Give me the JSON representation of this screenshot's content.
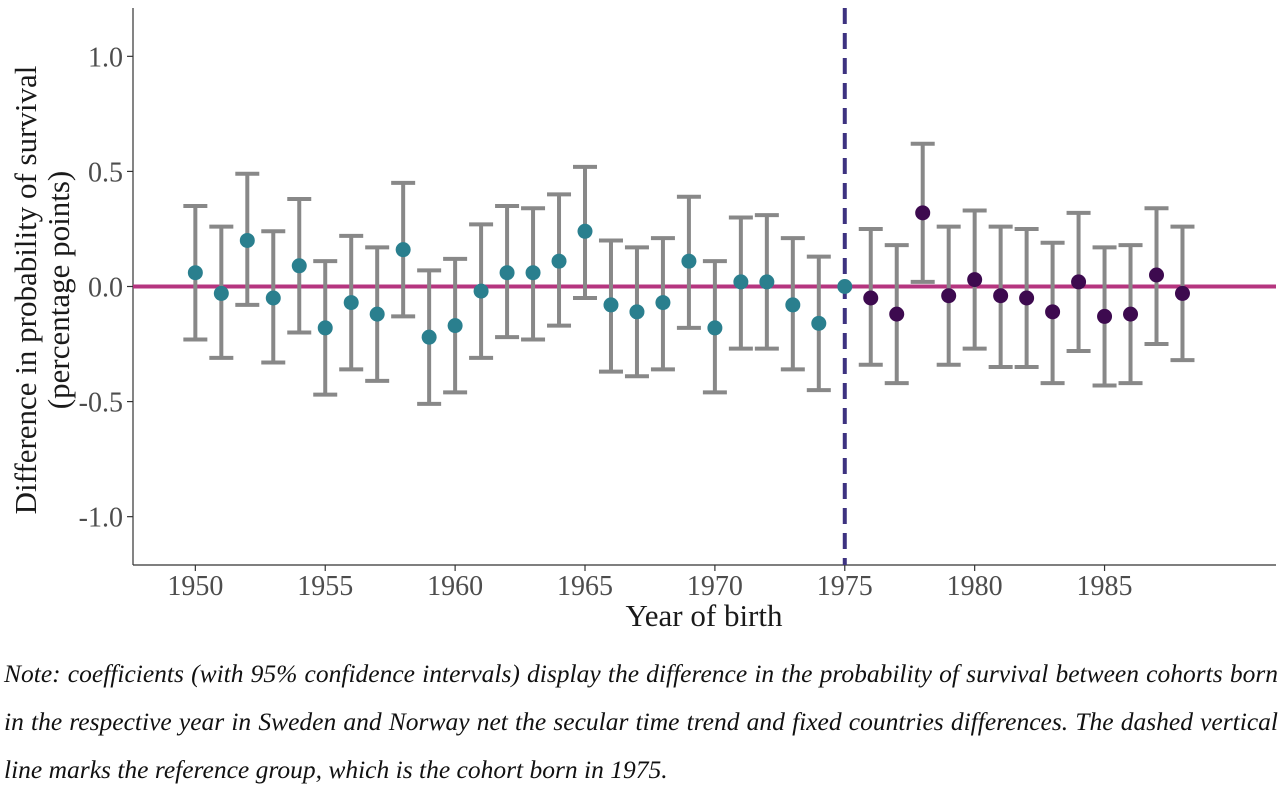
{
  "chart_data": {
    "type": "scatter",
    "title": "",
    "xlabel": "Year of birth",
    "ylabel": [
      "Difference in probability of survival",
      "(percentage points)"
    ],
    "xlim": [
      1947.6,
      1991.6
    ],
    "ylim": [
      -1.21,
      1.21
    ],
    "xticks": [
      1950,
      1955,
      1960,
      1965,
      1970,
      1975,
      1980,
      1985
    ],
    "xtick_labels": [
      "1950",
      "1955",
      "1960",
      "1965",
      "1970",
      "1975",
      "1980",
      "1985"
    ],
    "yticks": [
      1.0,
      0.5,
      0.0,
      -0.5,
      -1.0
    ],
    "ytick_labels": [
      "1.0",
      "0.5",
      "0.0",
      "-0.5",
      "-1.0"
    ],
    "reference_line": {
      "y": 0,
      "color": "#b5357f"
    },
    "reference_year": {
      "x": 1975,
      "style": "dashed",
      "color": "#3d3280"
    },
    "error_bar_color": "#888888",
    "grid": false,
    "series": [
      {
        "color": "#2a7f8e",
        "x": [
          1950,
          1951,
          1952,
          1953,
          1954,
          1955,
          1956,
          1957,
          1958,
          1959,
          1960,
          1961,
          1962,
          1963,
          1964,
          1965,
          1966,
          1967,
          1968,
          1969,
          1970,
          1971,
          1972,
          1973,
          1974,
          1975
        ],
        "y": [
          0.06,
          -0.03,
          0.2,
          -0.05,
          0.09,
          -0.18,
          -0.07,
          -0.12,
          0.16,
          -0.22,
          -0.17,
          -0.02,
          0.06,
          0.06,
          0.11,
          0.24,
          -0.08,
          -0.11,
          -0.07,
          0.11,
          -0.18,
          0.02,
          0.02,
          -0.08,
          -0.16,
          0.0
        ],
        "ci_low": [
          -0.23,
          -0.31,
          -0.08,
          -0.33,
          -0.2,
          -0.47,
          -0.36,
          -0.41,
          -0.13,
          -0.51,
          -0.46,
          -0.31,
          -0.22,
          -0.23,
          -0.17,
          -0.05,
          -0.37,
          -0.39,
          -0.36,
          -0.18,
          -0.46,
          -0.27,
          -0.27,
          -0.36,
          -0.45,
          null
        ],
        "ci_high": [
          0.35,
          0.26,
          0.49,
          0.24,
          0.38,
          0.11,
          0.22,
          0.17,
          0.45,
          0.07,
          0.12,
          0.27,
          0.35,
          0.34,
          0.4,
          0.52,
          0.2,
          0.17,
          0.21,
          0.39,
          0.11,
          0.3,
          0.31,
          0.21,
          0.13,
          null
        ]
      },
      {
        "color": "#3d0a4f",
        "x": [
          1976,
          1977,
          1978,
          1979,
          1980,
          1981,
          1982,
          1983,
          1984,
          1985,
          1986,
          1987,
          1988
        ],
        "y": [
          -0.05,
          -0.12,
          0.32,
          -0.04,
          0.03,
          -0.04,
          -0.05,
          -0.11,
          0.02,
          -0.13,
          -0.12,
          0.05,
          -0.03
        ],
        "ci_low": [
          -0.34,
          -0.42,
          0.02,
          -0.34,
          -0.27,
          -0.35,
          -0.35,
          -0.42,
          -0.28,
          -0.43,
          -0.42,
          -0.25,
          -0.32
        ],
        "ci_high": [
          0.25,
          0.18,
          0.62,
          0.26,
          0.33,
          0.26,
          0.25,
          0.19,
          0.32,
          0.17,
          0.18,
          0.34,
          0.26
        ]
      }
    ]
  },
  "note": "Note: coefficients (with 95% confidence intervals) display the difference in the probability of survival between cohorts born in the respective year in Sweden and Norway net the secular time trend and fixed countries differences. The dashed vertical line marks the reference group, which is the cohort born in 1975."
}
